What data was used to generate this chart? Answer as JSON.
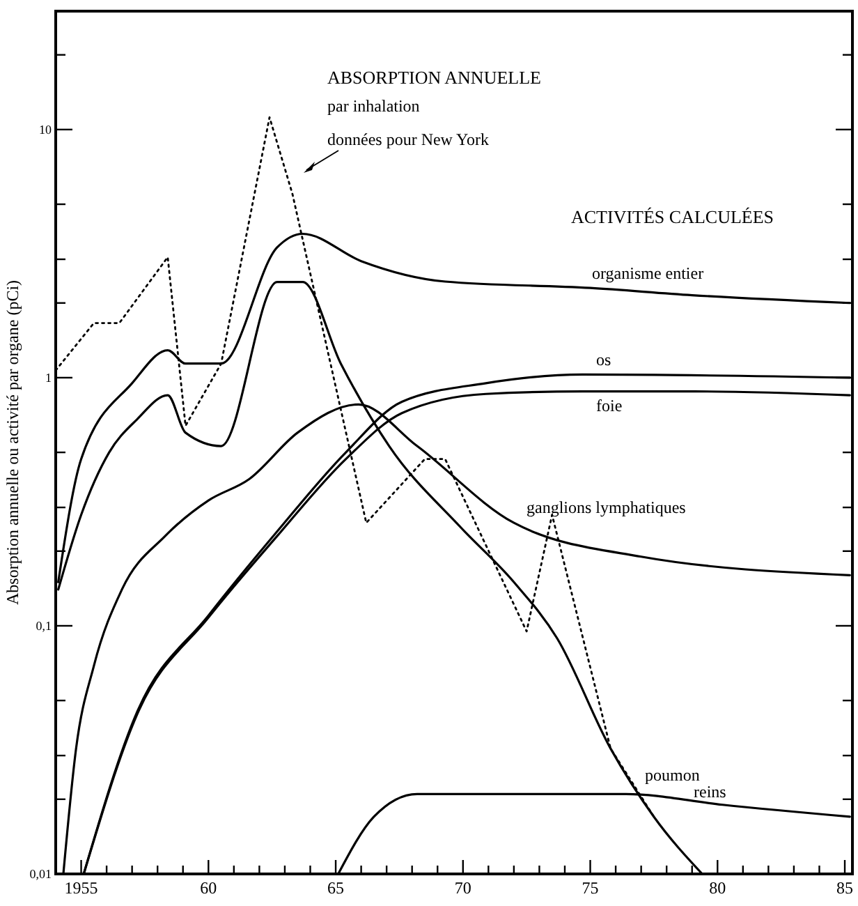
{
  "chart_data": {
    "type": "line",
    "ylabel": "Absorption annuelle ou activité par organe (pCi)",
    "log": "y",
    "xlim": [
      1954,
      1985.3
    ],
    "ylim": [
      0.01,
      30
    ],
    "xticks": [
      {
        "value": 1955,
        "label": "1955"
      },
      {
        "value": 1956,
        "label": null
      },
      {
        "value": 1957,
        "label": null
      },
      {
        "value": 1958,
        "label": null
      },
      {
        "value": 1959,
        "label": null
      },
      {
        "value": 1960,
        "label": "60"
      },
      {
        "value": 1961,
        "label": null
      },
      {
        "value": 1962,
        "label": null
      },
      {
        "value": 1963,
        "label": null
      },
      {
        "value": 1964,
        "label": null
      },
      {
        "value": 1965,
        "label": "65"
      },
      {
        "value": 1966,
        "label": null
      },
      {
        "value": 1967,
        "label": null
      },
      {
        "value": 1968,
        "label": null
      },
      {
        "value": 1969,
        "label": null
      },
      {
        "value": 1970,
        "label": "70"
      },
      {
        "value": 1971,
        "label": null
      },
      {
        "value": 1972,
        "label": null
      },
      {
        "value": 1973,
        "label": null
      },
      {
        "value": 1974,
        "label": null
      },
      {
        "value": 1975,
        "label": "75"
      },
      {
        "value": 1976,
        "label": null
      },
      {
        "value": 1977,
        "label": null
      },
      {
        "value": 1978,
        "label": null
      },
      {
        "value": 1979,
        "label": null
      },
      {
        "value": 1980,
        "label": "80"
      },
      {
        "value": 1981,
        "label": null
      },
      {
        "value": 1982,
        "label": null
      },
      {
        "value": 1983,
        "label": null
      },
      {
        "value": 1984,
        "label": null
      },
      {
        "value": 1985,
        "label": "85"
      }
    ],
    "yticks": [
      {
        "value": 0.01,
        "label": "0,01"
      },
      {
        "value": 0.02,
        "label": null
      },
      {
        "value": 0.03,
        "label": null
      },
      {
        "value": 0.05,
        "label": null
      },
      {
        "value": 0.1,
        "label": "0,1"
      },
      {
        "value": 0.2,
        "label": null
      },
      {
        "value": 0.3,
        "label": null
      },
      {
        "value": 0.5,
        "label": null
      },
      {
        "value": 1,
        "label": "1"
      },
      {
        "value": 2,
        "label": null
      },
      {
        "value": 3,
        "label": null
      },
      {
        "value": 5,
        "label": null
      },
      {
        "value": 10,
        "label": "10"
      },
      {
        "value": 20,
        "label": null
      }
    ],
    "annotations": [
      "ABSORPTION ANNUELLE",
      "par inhalation",
      "données pour New York",
      "ACTIVITÉS CALCULÉES"
    ],
    "series": [
      {
        "color": "#000000",
        "line_style": "dotted",
        "x": [
          1954,
          1955.5,
          1956.5,
          1958.4,
          1959.1,
          1960.5,
          1962.4,
          1963.3,
          1966.2,
          1968.5,
          1969.3,
          1972.5,
          1973.5,
          1975.8,
          1977.5
        ],
        "values": [
          1.07,
          1.66,
          1.66,
          3.06,
          0.64,
          1.14,
          11.2,
          5.5,
          0.26,
          0.47,
          0.47,
          0.095,
          0.28,
          0.032,
          0.017
        ]
      },
      {
        "name": "organisme entier",
        "color": "#000000",
        "line_style": "solid",
        "x": [
          1954.1,
          1955,
          1957,
          1958.4,
          1959.1,
          1960.5,
          1962.7,
          1963.7,
          1966,
          1969.3,
          1975,
          1979,
          1985.2
        ],
        "values": [
          0.15,
          0.47,
          0.95,
          1.29,
          1.14,
          1.14,
          3.35,
          3.8,
          2.95,
          2.44,
          2.3,
          2.15,
          2.0
        ]
      },
      {
        "name": "os",
        "color": "#000000",
        "line_style": "solid",
        "x": [
          1955.1,
          1957.2,
          1960,
          1962.7,
          1965.4,
          1967.6,
          1970.9,
          1974.7,
          1985.2
        ],
        "values": [
          0.01,
          0.045,
          0.11,
          0.24,
          0.5,
          0.8,
          0.95,
          1.03,
          1.0
        ]
      },
      {
        "name": "foie",
        "color": "#000000",
        "line_style": "solid",
        "x": [
          1955.1,
          1957.2,
          1960,
          1962.7,
          1965.4,
          1967.6,
          1970.9,
          1974.7,
          1979.1,
          1985.2
        ],
        "values": [
          0.01,
          0.044,
          0.108,
          0.23,
          0.47,
          0.72,
          0.86,
          0.88,
          0.88,
          0.85
        ]
      },
      {
        "name": "ganglions lymphatiques",
        "color": "#000000",
        "line_style": "solid",
        "x": [
          1954.3,
          1954.8,
          1955.5,
          1956.6,
          1958.3,
          1960,
          1961.6,
          1963.5,
          1965.9,
          1968.2,
          1972,
          1977,
          1985.2
        ],
        "values": [
          0.01,
          0.032,
          0.069,
          0.14,
          0.23,
          0.32,
          0.39,
          0.6,
          0.78,
          0.53,
          0.26,
          0.19,
          0.16
        ]
      },
      {
        "name": "poumon",
        "color": "#000000",
        "line_style": "solid",
        "x": [
          1954.1,
          1955,
          1956.1,
          1957.2,
          1958.4,
          1959.1,
          1960.5,
          1962.7,
          1963.7,
          1965.2,
          1967.1,
          1969.9,
          1972,
          1973.7,
          1975.8,
          1977.5,
          1979.4
        ],
        "values": [
          0.14,
          0.28,
          0.5,
          0.68,
          0.85,
          0.6,
          0.53,
          2.43,
          2.43,
          1.14,
          0.53,
          0.25,
          0.15,
          0.089,
          0.032,
          0.017,
          0.01
        ]
      },
      {
        "name": "reins",
        "color": "#000000",
        "line_style": "solid",
        "x": [
          1965.1,
          1966.5,
          1968.2,
          1972,
          1976.4,
          1980.2,
          1985.2
        ],
        "values": [
          0.01,
          0.017,
          0.021,
          0.021,
          0.021,
          0.019,
          0.017
        ]
      }
    ]
  }
}
